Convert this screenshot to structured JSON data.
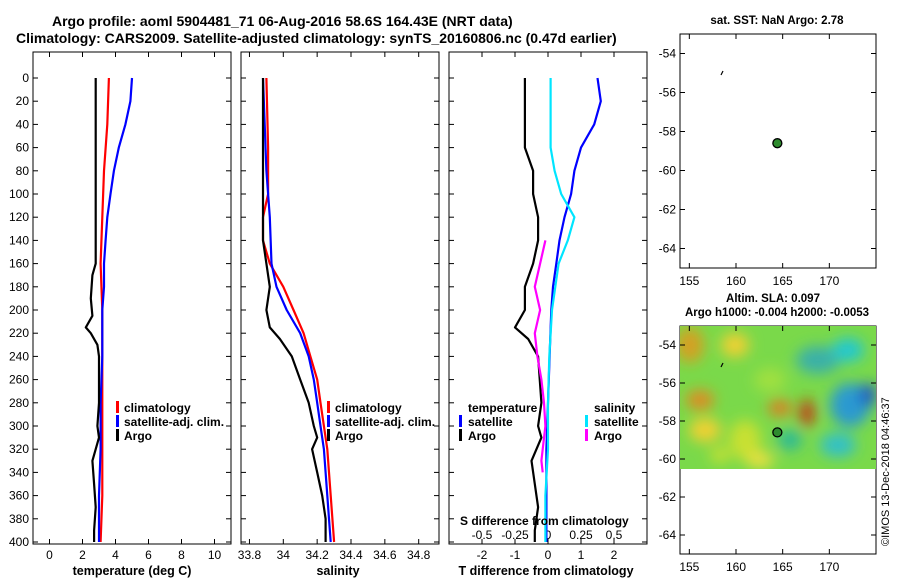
{
  "header": {
    "title_line1": "Argo profile: aoml 5904481_71 06-Aug-2016 58.6S 164.43E (NRT data)",
    "title_line2": "Climatology: CARS2009. Satellite-adjusted climatology: synTS_20160806.nc (0.47d earlier)"
  },
  "footer": {
    "imos_stamp": "©IMOS 13-Dec-2018 04:46:37"
  },
  "colors": {
    "climatology": "#ff0000",
    "satellite": "#0000ff",
    "argo": "#000000",
    "s_satellite": "#00e5ff",
    "s_argo": "#ff00ff"
  },
  "chart_data": [
    {
      "type": "line",
      "name": "temperature-profile",
      "xlabel": "temperature (deg C)",
      "ylabel": "",
      "xlim": [
        -1,
        11
      ],
      "ylim": [
        400,
        0
      ],
      "xticks": [
        0,
        2,
        4,
        6,
        8,
        10
      ],
      "yticks": [
        0,
        20,
        40,
        60,
        80,
        100,
        120,
        140,
        160,
        180,
        200,
        220,
        240,
        260,
        280,
        300,
        320,
        340,
        360,
        380,
        400
      ],
      "legend": [
        "climatology",
        "satellite-adj. clim.",
        "Argo"
      ],
      "series": [
        {
          "name": "climatology",
          "color": "#ff0000",
          "points": [
            [
              3.6,
              0
            ],
            [
              3.5,
              40
            ],
            [
              3.3,
              80
            ],
            [
              3.2,
              120
            ],
            [
              3.1,
              160
            ],
            [
              3.2,
              200
            ],
            [
              3.2,
              240
            ],
            [
              3.2,
              280
            ],
            [
              3.2,
              320
            ],
            [
              3.2,
              360
            ],
            [
              3.1,
              400
            ]
          ]
        },
        {
          "name": "satellite-adj. clim.",
          "color": "#0000ff",
          "points": [
            [
              5.0,
              0
            ],
            [
              4.9,
              20
            ],
            [
              4.6,
              40
            ],
            [
              4.2,
              60
            ],
            [
              3.9,
              80
            ],
            [
              3.7,
              100
            ],
            [
              3.5,
              120
            ],
            [
              3.4,
              140
            ],
            [
              3.3,
              160
            ],
            [
              3.3,
              180
            ],
            [
              3.2,
              200
            ],
            [
              3.2,
              240
            ],
            [
              3.1,
              280
            ],
            [
              3.1,
              320
            ],
            [
              3.0,
              360
            ],
            [
              3.0,
              400
            ]
          ]
        },
        {
          "name": "Argo",
          "color": "#000000",
          "points": [
            [
              2.8,
              0
            ],
            [
              2.8,
              60
            ],
            [
              2.8,
              120
            ],
            [
              2.8,
              160
            ],
            [
              2.6,
              170
            ],
            [
              2.5,
              190
            ],
            [
              2.6,
              205
            ],
            [
              2.2,
              215
            ],
            [
              2.5,
              220
            ],
            [
              2.9,
              230
            ],
            [
              3.0,
              240
            ],
            [
              3.0,
              280
            ],
            [
              2.9,
              300
            ],
            [
              3.0,
              310
            ],
            [
              2.8,
              320
            ],
            [
              2.6,
              330
            ],
            [
              2.7,
              350
            ],
            [
              2.8,
              370
            ],
            [
              2.7,
              390
            ],
            [
              2.7,
              400
            ]
          ]
        }
      ]
    },
    {
      "type": "line",
      "name": "salinity-profile",
      "xlabel": "salinity",
      "ylabel": "",
      "xlim": [
        33.75,
        34.92
      ],
      "ylim": [
        400,
        0
      ],
      "xticks": [
        33.8,
        34,
        34.2,
        34.4,
        34.6,
        34.8
      ],
      "xticklabels": [
        "33.8",
        "34",
        "34.2",
        "34.4",
        "34.6",
        "34.8"
      ],
      "legend": [
        "climatology",
        "satellite-adj. clim.",
        "Argo"
      ],
      "series": [
        {
          "name": "climatology",
          "color": "#ff0000",
          "points": [
            [
              33.9,
              0
            ],
            [
              33.91,
              60
            ],
            [
              33.91,
              100
            ],
            [
              33.88,
              120
            ],
            [
              33.88,
              140
            ],
            [
              33.92,
              160
            ],
            [
              34.0,
              180
            ],
            [
              34.06,
              200
            ],
            [
              34.12,
              220
            ],
            [
              34.16,
              240
            ],
            [
              34.2,
              260
            ],
            [
              34.22,
              280
            ],
            [
              34.24,
              300
            ],
            [
              34.26,
              320
            ],
            [
              34.27,
              340
            ],
            [
              34.28,
              360
            ],
            [
              34.29,
              380
            ],
            [
              34.3,
              400
            ]
          ]
        },
        {
          "name": "satellite-adj. clim.",
          "color": "#0000ff",
          "points": [
            [
              33.88,
              0
            ],
            [
              33.89,
              40
            ],
            [
              33.9,
              80
            ],
            [
              33.92,
              120
            ],
            [
              33.93,
              160
            ],
            [
              33.96,
              180
            ],
            [
              34.02,
              200
            ],
            [
              34.1,
              220
            ],
            [
              34.15,
              240
            ],
            [
              34.18,
              260
            ],
            [
              34.2,
              280
            ],
            [
              34.22,
              300
            ],
            [
              34.24,
              320
            ],
            [
              34.25,
              340
            ],
            [
              34.26,
              360
            ],
            [
              34.27,
              380
            ],
            [
              34.28,
              400
            ]
          ]
        },
        {
          "name": "Argo",
          "color": "#000000",
          "points": [
            [
              33.88,
              0
            ],
            [
              33.88,
              80
            ],
            [
              33.88,
              140
            ],
            [
              33.9,
              160
            ],
            [
              33.92,
              180
            ],
            [
              33.9,
              200
            ],
            [
              33.92,
              215
            ],
            [
              33.98,
              225
            ],
            [
              34.05,
              240
            ],
            [
              34.1,
              260
            ],
            [
              34.15,
              280
            ],
            [
              34.18,
              300
            ],
            [
              34.2,
              310
            ],
            [
              34.17,
              320
            ],
            [
              34.2,
              340
            ],
            [
              34.23,
              360
            ],
            [
              34.25,
              380
            ],
            [
              34.25,
              400
            ]
          ]
        }
      ]
    },
    {
      "type": "line",
      "name": "difference-profile",
      "xlabel": "T difference from climatology",
      "x2label": "S difference from climatology",
      "xlim": [
        -3,
        3
      ],
      "ylim": [
        400,
        0
      ],
      "xticks": [
        -2,
        -1,
        0,
        1,
        2
      ],
      "x2ticks": [
        -0.5,
        -0.25,
        0,
        0.25,
        0.5
      ],
      "legend_left_title": "temperature",
      "legend_left": [
        "satellite",
        "Argo"
      ],
      "legend_right_title": "salinity",
      "legend_right": [
        "satellite",
        "Argo"
      ],
      "series": [
        {
          "name": "T satellite",
          "color": "#0000ff",
          "points": [
            [
              1.5,
              0
            ],
            [
              1.6,
              20
            ],
            [
              1.4,
              40
            ],
            [
              1.0,
              60
            ],
            [
              0.8,
              80
            ],
            [
              0.7,
              100
            ],
            [
              0.5,
              120
            ],
            [
              0.35,
              140
            ],
            [
              0.25,
              160
            ],
            [
              0.15,
              180
            ],
            [
              0.1,
              200
            ],
            [
              0.05,
              240
            ],
            [
              0,
              280
            ],
            [
              -0.05,
              320
            ],
            [
              -0.05,
              360
            ],
            [
              -0.05,
              400
            ]
          ]
        },
        {
          "name": "T Argo",
          "color": "#000000",
          "points": [
            [
              -0.7,
              0
            ],
            [
              -0.7,
              60
            ],
            [
              -0.45,
              80
            ],
            [
              -0.45,
              100
            ],
            [
              -0.3,
              120
            ],
            [
              -0.3,
              140
            ],
            [
              -0.45,
              160
            ],
            [
              -0.7,
              180
            ],
            [
              -0.7,
              200
            ],
            [
              -1.0,
              215
            ],
            [
              -0.6,
              225
            ],
            [
              -0.3,
              240
            ],
            [
              -0.2,
              280
            ],
            [
              -0.3,
              300
            ],
            [
              -0.2,
              310
            ],
            [
              -0.5,
              330
            ],
            [
              -0.4,
              350
            ],
            [
              -0.3,
              370
            ],
            [
              -0.4,
              390
            ],
            [
              -0.4,
              400
            ]
          ]
        },
        {
          "name": "S satellite",
          "color": "#00e5ff",
          "points": [
            [
              0.02,
              0
            ],
            [
              0.02,
              60
            ],
            [
              0.05,
              80
            ],
            [
              0.1,
              100
            ],
            [
              0.2,
              120
            ],
            [
              0.15,
              140
            ],
            [
              0.08,
              160
            ],
            [
              0.03,
              200
            ],
            [
              0.01,
              240
            ],
            [
              0,
              280
            ],
            [
              0,
              320
            ],
            [
              -0.02,
              360
            ],
            [
              -0.02,
              400
            ]
          ]
        },
        {
          "name": "S Argo",
          "color": "#ff00ff",
          "points": [
            [
              -0.02,
              140
            ],
            [
              -0.06,
              160
            ],
            [
              -0.1,
              180
            ],
            [
              -0.06,
              200
            ],
            [
              -0.1,
              220
            ],
            [
              -0.08,
              240
            ],
            [
              -0.05,
              260
            ],
            [
              -0.03,
              280
            ],
            [
              -0.02,
              300
            ],
            [
              -0.04,
              320
            ],
            [
              -0.05,
              330
            ],
            [
              -0.04,
              340
            ]
          ]
        }
      ]
    },
    {
      "type": "scatter",
      "name": "sst-map",
      "title": "sat. SST: NaN Argo: 2.78",
      "xlim": [
        154,
        175
      ],
      "ylim": [
        -65,
        -53
      ],
      "xticks": [
        155,
        160,
        165,
        170
      ],
      "yticks": [
        -54,
        -56,
        -58,
        -60,
        -62,
        -64
      ],
      "points": [
        {
          "x": 164.43,
          "y": -58.6
        }
      ]
    },
    {
      "type": "heatmap",
      "name": "sla-map",
      "title": "Altim. SLA: 0.097",
      "subtitle": "Argo h1000: -0.004 h2000: -0.0053",
      "xlim": [
        154,
        175
      ],
      "ylim": [
        -65,
        -53
      ],
      "xticks": [
        155,
        160,
        165,
        170
      ],
      "yticks": [
        -54,
        -56,
        -58,
        -60,
        -62,
        -64
      ],
      "data_extent_lat": [
        -60,
        -53
      ],
      "points": [
        {
          "x": 164.43,
          "y": -58.6
        }
      ]
    }
  ]
}
